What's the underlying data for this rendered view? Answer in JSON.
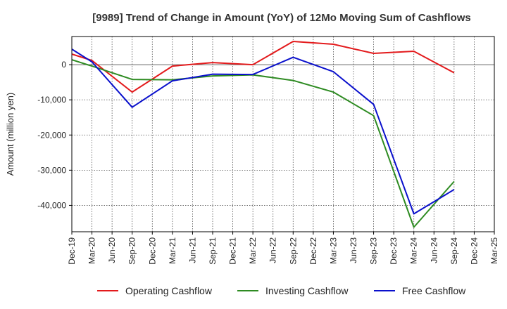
{
  "chart_data": {
    "type": "line",
    "title": "[9989]  Trend of Change in Amount (YoY) of 12Mo Moving Sum of Cashflows",
    "xlabel": "",
    "ylabel": "Amount (million yen)",
    "ylim": [
      -47500,
      8000
    ],
    "yticks": [
      0,
      -10000,
      -20000,
      -30000,
      -40000
    ],
    "ytick_labels": [
      "0",
      "-10,000",
      "-20,000",
      "-30,000",
      "-40,000"
    ],
    "categories": [
      "Dec-19",
      "Mar-20",
      "Jun-20",
      "Sep-20",
      "Dec-20",
      "Mar-21",
      "Jun-21",
      "Sep-21",
      "Dec-21",
      "Mar-22",
      "Jun-22",
      "Sep-22",
      "Dec-22",
      "Mar-23",
      "Jun-23",
      "Sep-23",
      "Dec-23",
      "Mar-24",
      "Jun-24",
      "Sep-24",
      "Dec-24",
      "Mar-25"
    ],
    "series": [
      {
        "name": "Operating Cashflow",
        "color": "#e31a1c",
        "values": [
          3000,
          1200,
          null,
          -7800,
          null,
          -400,
          null,
          600,
          null,
          0,
          null,
          6600,
          null,
          5800,
          null,
          3200,
          null,
          3800,
          null,
          -2300,
          null,
          null
        ]
      },
      {
        "name": "Investing Cashflow",
        "color": "#2e8b22",
        "values": [
          1400,
          -400,
          null,
          -4200,
          null,
          -4300,
          null,
          -3200,
          null,
          -2900,
          null,
          -4500,
          null,
          -7800,
          null,
          -14500,
          null,
          -46200,
          null,
          -33200,
          null,
          null
        ]
      },
      {
        "name": "Free Cashflow",
        "color": "#0a10cc",
        "values": [
          4400,
          800,
          null,
          -12100,
          null,
          -4600,
          null,
          -2700,
          null,
          -2800,
          null,
          2100,
          null,
          -2000,
          null,
          -11300,
          null,
          -42400,
          null,
          -35500,
          null,
          null
        ]
      }
    ],
    "legend": "bottom",
    "grid": true
  }
}
